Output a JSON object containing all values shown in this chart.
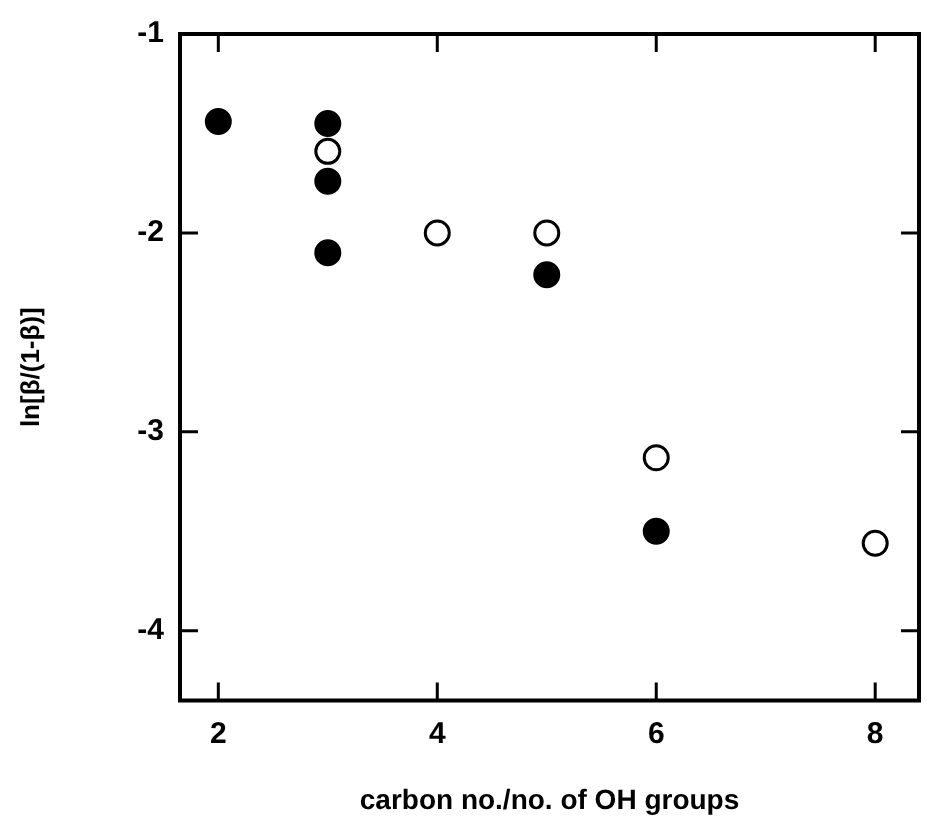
{
  "chart_data": {
    "type": "scatter",
    "xlabel": "carbon no./no. of OH groups",
    "ylabel": "ln[β/(1-β)]",
    "x": [
      2,
      3,
      3,
      3,
      3,
      4,
      5,
      5,
      6,
      6,
      8
    ],
    "values": [
      -1.44,
      -1.45,
      -1.59,
      -1.74,
      -2.1,
      -2.0,
      -2.0,
      -2.21,
      -3.13,
      -3.5,
      -3.56
    ],
    "colors": [
      "#000000",
      "#000000",
      "#ffffff",
      "#000000",
      "#000000",
      "#ffffff",
      "#ffffff",
      "#000000",
      "#ffffff",
      "#000000",
      "#ffffff"
    ],
    "marker": "circle",
    "grid": false,
    "legend": false,
    "xlim": [
      1.65,
      8.4
    ],
    "xticks": [
      2,
      4,
      6,
      8
    ],
    "ylim": [
      -4.35,
      -1
    ],
    "yticks": [
      -1,
      -2,
      -3,
      -4
    ]
  }
}
